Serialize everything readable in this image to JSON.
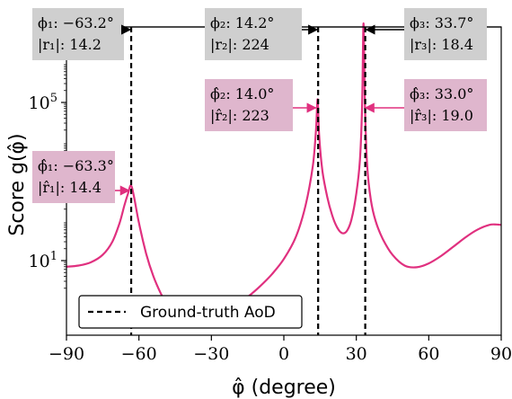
{
  "chart_data": {
    "type": "line",
    "xlabel": "φ̂ (degree)",
    "ylabel": "Score g(φ̂)",
    "x_ticks": [
      -90,
      -60,
      -30,
      0,
      30,
      60,
      90
    ],
    "y_ticks": [
      {
        "value": 10,
        "label": "10",
        "exponent": "1"
      },
      {
        "value": 100000,
        "label": "10",
        "exponent": "5"
      }
    ],
    "x_range": [
      -90,
      90
    ],
    "y_scale": "log",
    "legend": {
      "position": "bottom-left",
      "label": "Ground-truth AoD",
      "style": "dashed",
      "color": "#000000"
    },
    "colors": {
      "curve": "#e0307f",
      "estimate_box": "#dfb6cd",
      "truth_box": "#cfcfcf",
      "truth_line": "#000000"
    },
    "ground_truth_aod": [
      -63.2,
      14.2,
      33.7
    ],
    "estimated_peaks": [
      -63.3,
      14.0,
      33.0
    ],
    "series": [
      {
        "style": "solid",
        "color": "#e0307f",
        "points": [
          {
            "x": -90,
            "y": 7
          },
          {
            "x": -85,
            "y": 7.5
          },
          {
            "x": -80,
            "y": 9
          },
          {
            "x": -75,
            "y": 14
          },
          {
            "x": -71,
            "y": 30
          },
          {
            "x": -68,
            "y": 90
          },
          {
            "x": -66,
            "y": 250
          },
          {
            "x": -64.5,
            "y": 500
          },
          {
            "x": -63.3,
            "y": 800
          },
          {
            "x": -62,
            "y": 400
          },
          {
            "x": -60,
            "y": 90
          },
          {
            "x": -57,
            "y": 15
          },
          {
            "x": -54,
            "y": 4
          },
          {
            "x": -51,
            "y": 1.5
          },
          {
            "x": -48,
            "y": 0.7
          },
          {
            "x": -45,
            "y": 0.4
          },
          {
            "x": -40,
            "y": 0.3
          },
          {
            "x": -35,
            "y": 0.3
          },
          {
            "x": -30,
            "y": 0.35
          },
          {
            "x": -25,
            "y": 0.45
          },
          {
            "x": -20,
            "y": 0.7
          },
          {
            "x": -15,
            "y": 1.2
          },
          {
            "x": -10,
            "y": 2.2
          },
          {
            "x": -5,
            "y": 4.5
          },
          {
            "x": 0,
            "y": 11
          },
          {
            "x": 5,
            "y": 40
          },
          {
            "x": 9,
            "y": 250
          },
          {
            "x": 12,
            "y": 2500
          },
          {
            "x": 13.3,
            "y": 20000
          },
          {
            "x": 14.0,
            "y": 120000
          },
          {
            "x": 14.6,
            "y": 15000
          },
          {
            "x": 16,
            "y": 1800
          },
          {
            "x": 18,
            "y": 400
          },
          {
            "x": 20,
            "y": 140
          },
          {
            "x": 22,
            "y": 70
          },
          {
            "x": 24,
            "y": 50
          },
          {
            "x": 26,
            "y": 55
          },
          {
            "x": 28,
            "y": 110
          },
          {
            "x": 30,
            "y": 500
          },
          {
            "x": 31.5,
            "y": 3500
          },
          {
            "x": 32.4,
            "y": 80000
          },
          {
            "x": 33.0,
            "y": 10000000
          },
          {
            "x": 33.6,
            "y": 80000
          },
          {
            "x": 34.5,
            "y": 2500
          },
          {
            "x": 36,
            "y": 350
          },
          {
            "x": 38,
            "y": 100
          },
          {
            "x": 41,
            "y": 35
          },
          {
            "x": 45,
            "y": 14
          },
          {
            "x": 50,
            "y": 7.5
          },
          {
            "x": 55,
            "y": 6.8
          },
          {
            "x": 60,
            "y": 8.5
          },
          {
            "x": 65,
            "y": 13
          },
          {
            "x": 70,
            "y": 22
          },
          {
            "x": 75,
            "y": 38
          },
          {
            "x": 80,
            "y": 60
          },
          {
            "x": 85,
            "y": 80
          },
          {
            "x": 88,
            "y": 82
          },
          {
            "x": 90,
            "y": 80
          }
        ]
      }
    ],
    "annotations": {
      "truth": [
        {
          "id": 1,
          "phi_label": "ϕ₁: −63.2°",
          "r_label": "|r₁|: 14.2"
        },
        {
          "id": 2,
          "phi_label": "ϕ₂: 14.2°",
          "r_label": "|r₂|: 224"
        },
        {
          "id": 3,
          "phi_label": "ϕ₃: 33.7°",
          "r_label": "|r₃|: 18.4"
        }
      ],
      "estimates": [
        {
          "id": 1,
          "phi_label": "ϕ̂₁: −63.3°",
          "r_label": "|r̂₁|: 14.4"
        },
        {
          "id": 2,
          "phi_label": "ϕ̂₂: 14.0°",
          "r_label": "|r̂₂|: 223"
        },
        {
          "id": 3,
          "phi_label": "ϕ̂₃: 33.0°",
          "r_label": "|r̂₃|: 19.0"
        }
      ]
    }
  }
}
